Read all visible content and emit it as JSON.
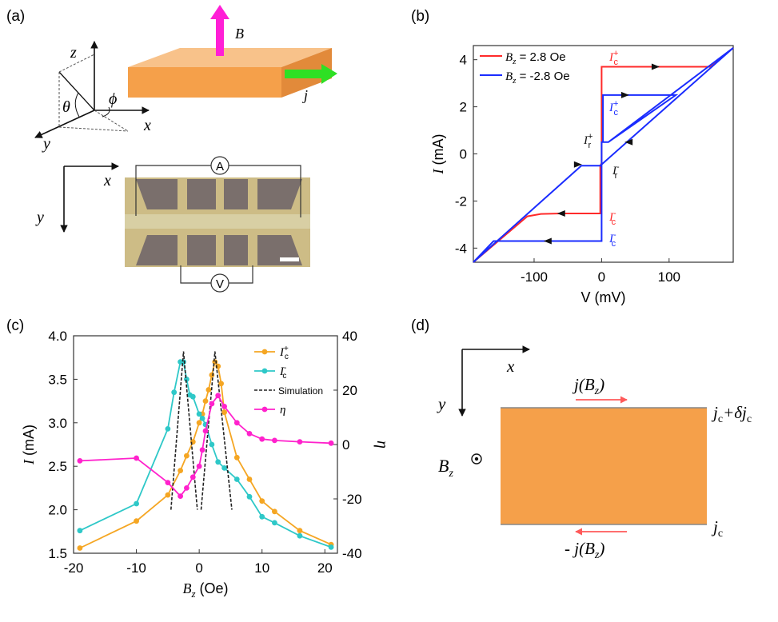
{
  "colors": {
    "orange": "#f5a04a",
    "magenta": "#ff1fd6",
    "green": "#2ee024",
    "red": "#ff2a2a",
    "blue": "#1a2cff",
    "cyan": "#2ec8c8",
    "orange_line": "#f5a623",
    "pink": "#ff22cc"
  },
  "panel_a": {
    "label": "(a)",
    "axis_z": "z",
    "axis_x": "x",
    "axis_y": "y",
    "angle_theta": "θ",
    "angle_phi": "ϕ",
    "field_B": "B",
    "current_j": "j",
    "img_x": "x",
    "img_y": "y",
    "ammeter": "A",
    "voltmeter": "V"
  },
  "panel_d": {
    "label": "(d)",
    "axis_x": "x",
    "axis_y": "y",
    "top_current": "j(B",
    "top_current_sub": "z",
    "top_current_close": ")",
    "bottom_current": "- j(B",
    "bottom_current_sub": "z",
    "bottom_current_close": ")",
    "field": "B",
    "field_sub": "z",
    "jc_top": "j",
    "jc_top_sub": "c",
    "jc_top_plus": "+δj",
    "jc_top_sub2": "c",
    "jc_bottom": "j",
    "jc_bottom_sub": "c"
  },
  "chart_data": [
    {
      "id": "b",
      "panel_label": "(b)",
      "type": "line",
      "xlabel": "V (mV)",
      "ylabel_var": "I",
      "ylabel_unit": " (mA)",
      "xlim": [
        -190,
        195
      ],
      "ylim": [
        -4.6,
        4.6
      ],
      "x_ticks": [
        -100,
        0,
        100
      ],
      "y_ticks": [
        -4,
        -2,
        0,
        2,
        4
      ],
      "legend": {
        "position": "top-left"
      },
      "series": [
        {
          "name_prefix": "B",
          "name_sub": "z",
          "name_suffix": " = 2.8 Oe",
          "color": "#ff2a2a",
          "points": [
            [
              -190,
              -4.6
            ],
            [
              -110,
              -2.65
            ],
            [
              -90,
              -2.55
            ],
            [
              -60,
              -2.53
            ],
            [
              -2,
              -2.53
            ],
            [
              -2,
              -0.5
            ],
            [
              0,
              -0.4
            ],
            [
              0,
              3.7
            ],
            [
              160,
              3.7
            ],
            [
              195,
              4.5
            ]
          ]
        },
        {
          "name_prefix": "B",
          "name_sub": "z",
          "name_suffix": " = -2.8 Oe",
          "color": "#1a2cff",
          "points": [
            [
              -190,
              -4.6
            ],
            [
              -160,
              -3.7
            ],
            [
              0,
              -3.7
            ],
            [
              0,
              0.5
            ],
            [
              10,
              0.5
            ],
            [
              110,
              2.5
            ],
            [
              2,
              2.5
            ],
            [
              2,
              0.5
            ],
            [
              10,
              0.5
            ],
            [
              195,
              4.5
            ],
            [
              -2,
              -0.5
            ],
            [
              -30,
              -0.5
            ],
            [
              -190,
              -4.6
            ]
          ]
        }
      ],
      "annotations": [
        {
          "var": "I",
          "sub": "c",
          "sup": "+",
          "color": "#ff2a2a"
        },
        {
          "var": "I",
          "sub": "c",
          "sup": "+",
          "color": "#1a2cff"
        },
        {
          "var": "I",
          "sub": "r",
          "sup": "+",
          "color": "#111111"
        },
        {
          "var": "I",
          "sub": "r",
          "sup": "-",
          "color": "#111111"
        },
        {
          "var": "I",
          "sub": "c",
          "sup": "-",
          "color": "#ff2a2a"
        },
        {
          "var": "I",
          "sub": "c",
          "sup": "-",
          "color": "#1a2cff"
        }
      ]
    },
    {
      "id": "c",
      "panel_label": "(c)",
      "type": "line",
      "xlabel_var": "B",
      "xlabel_sub": "z",
      "xlabel_unit": " (Oe)",
      "ylabel_var": "I",
      "ylabel_unit": " (mA)",
      "y2label": "η",
      "xlim": [
        -20,
        22
      ],
      "ylim": [
        1.5,
        4.0
      ],
      "y2lim": [
        -40,
        40
      ],
      "x_ticks": [
        -20,
        -10,
        0,
        10,
        20
      ],
      "y_ticks": [
        1.5,
        2.0,
        2.5,
        3.0,
        3.5,
        4.0
      ],
      "y2_ticks": [
        -40,
        -20,
        0,
        20,
        40
      ],
      "legend": {
        "position": "top-right"
      },
      "series": [
        {
          "name_var": "I",
          "name_sub": "c",
          "name_sup": "+",
          "color": "#f5a623",
          "axis": "left",
          "marker": "circle",
          "x": [
            -19,
            -10,
            -5,
            -3,
            -2,
            -1,
            0,
            0.5,
            1,
            1.5,
            2,
            2.5,
            3,
            3.5,
            4,
            6,
            8,
            10,
            12,
            16,
            21
          ],
          "y": [
            1.56,
            1.87,
            2.17,
            2.45,
            2.62,
            2.78,
            3.0,
            3.1,
            3.25,
            3.38,
            3.55,
            3.7,
            3.65,
            3.45,
            3.12,
            2.6,
            2.35,
            2.1,
            1.98,
            1.76,
            1.6
          ]
        },
        {
          "name_var": "I",
          "name_sub": "c",
          "name_sup": "-",
          "color": "#2ec8c8",
          "axis": "left",
          "marker": "circle",
          "x": [
            -19,
            -10,
            -5,
            -4,
            -3,
            -2.5,
            -2,
            -1.5,
            -1,
            0,
            0.5,
            1,
            2,
            3,
            4,
            6,
            8,
            10,
            12,
            16,
            21
          ],
          "y": [
            1.76,
            2.07,
            2.93,
            3.35,
            3.7,
            3.7,
            3.5,
            3.32,
            3.3,
            3.1,
            3.05,
            2.98,
            2.75,
            2.55,
            2.48,
            2.35,
            2.15,
            1.92,
            1.85,
            1.7,
            1.57
          ]
        },
        {
          "name": "Simulation",
          "color": "#222222",
          "axis": "left",
          "dash": true,
          "x": [
            -4.5,
            -2.5,
            -0.5,
            1.5,
            3.5,
            5.5
          ],
          "y": [
            2.0,
            3.82,
            2.0,
            2.0,
            3.82,
            2.0
          ],
          "segments": [
            [
              -4.5,
              -2.5,
              -0.5
            ],
            [
              0.5,
              2.5,
              5.2
            ]
          ]
        },
        {
          "name_var": "η",
          "color": "#ff22cc",
          "axis": "right",
          "marker": "circle",
          "x": [
            -19,
            -10,
            -5,
            -3,
            -2,
            -1,
            0,
            0.5,
            1,
            2,
            3,
            4,
            6,
            8,
            10,
            12,
            16,
            21
          ],
          "y": [
            -6,
            -5,
            -14,
            -19,
            -16,
            -12,
            -8,
            -2,
            5,
            15,
            18,
            14,
            8,
            4,
            2,
            1.5,
            1,
            0.5
          ]
        }
      ]
    }
  ]
}
